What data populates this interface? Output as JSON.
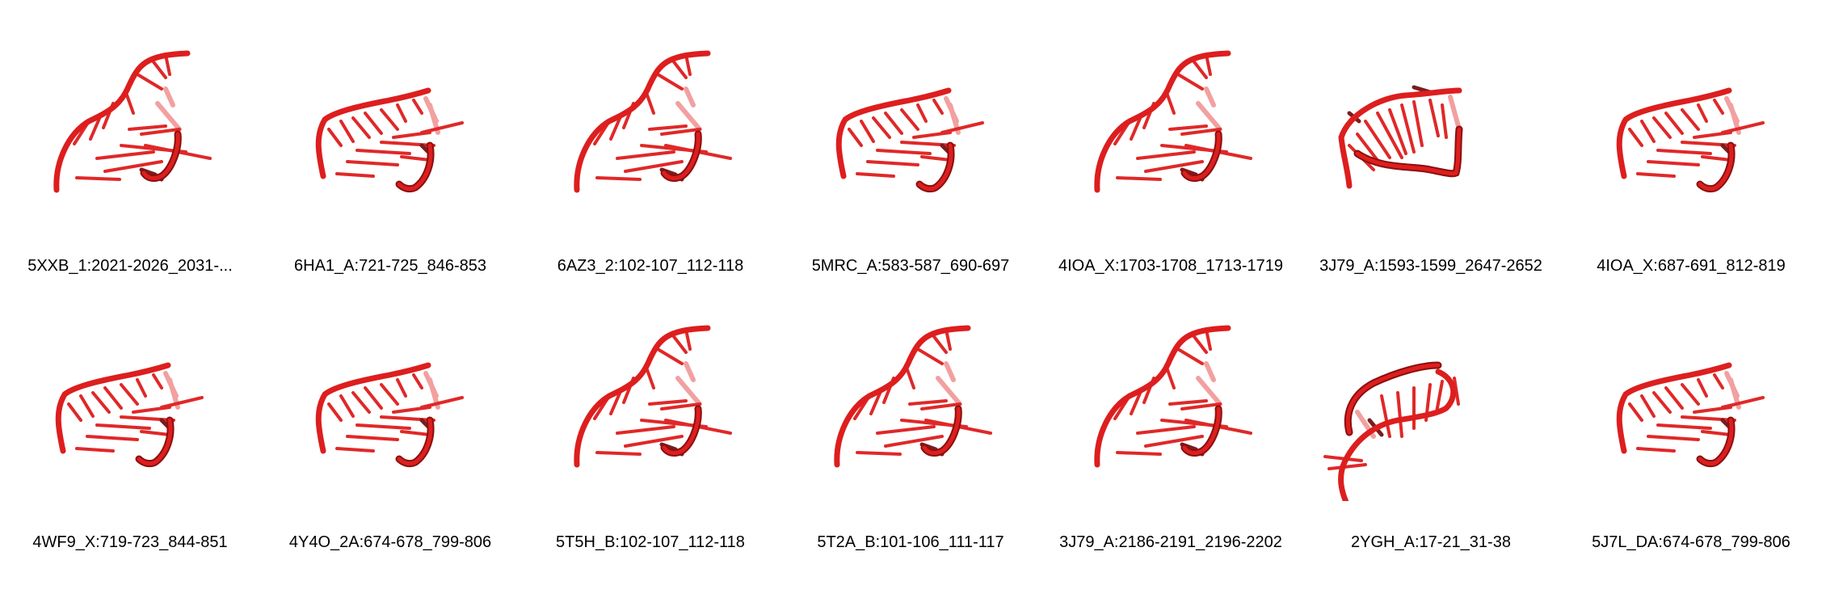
{
  "panels": [
    {
      "label": "5XXB_1:2021-2026_2031-...",
      "variant": "tall"
    },
    {
      "label": "6HA1_A:721-725_846-853",
      "variant": "flat"
    },
    {
      "label": "6AZ3_2:102-107_112-118",
      "variant": "tall"
    },
    {
      "label": "5MRC_A:583-587_690-697",
      "variant": "flat"
    },
    {
      "label": "4IOA_X:1703-1708_1713-1719",
      "variant": "tall"
    },
    {
      "label": "3J79_A:1593-1599_2647-2652",
      "variant": "cup"
    },
    {
      "label": "4IOA_X:687-691_812-819",
      "variant": "flat"
    },
    {
      "label": "4WF9_X:719-723_844-851",
      "variant": "flat"
    },
    {
      "label": "4Y4O_2A:674-678_799-806",
      "variant": "flat"
    },
    {
      "label": "5T5H_B:102-107_112-118",
      "variant": "tall"
    },
    {
      "label": "5T2A_B:101-106_111-117",
      "variant": "tall"
    },
    {
      "label": "3J79_A:2186-2191_2196-2202",
      "variant": "tall"
    },
    {
      "label": "2YGH_A:17-21_31-38",
      "variant": "hook"
    },
    {
      "label": "5J7L_DA:674-678_799-806",
      "variant": "flat"
    }
  ],
  "colors": {
    "backbone": "#dd1e1e",
    "backbone_dark": "#8a0f0f",
    "base": "#e02828",
    "base_pale": "#f2a0a0",
    "base_dark": "#7a1d1d"
  }
}
